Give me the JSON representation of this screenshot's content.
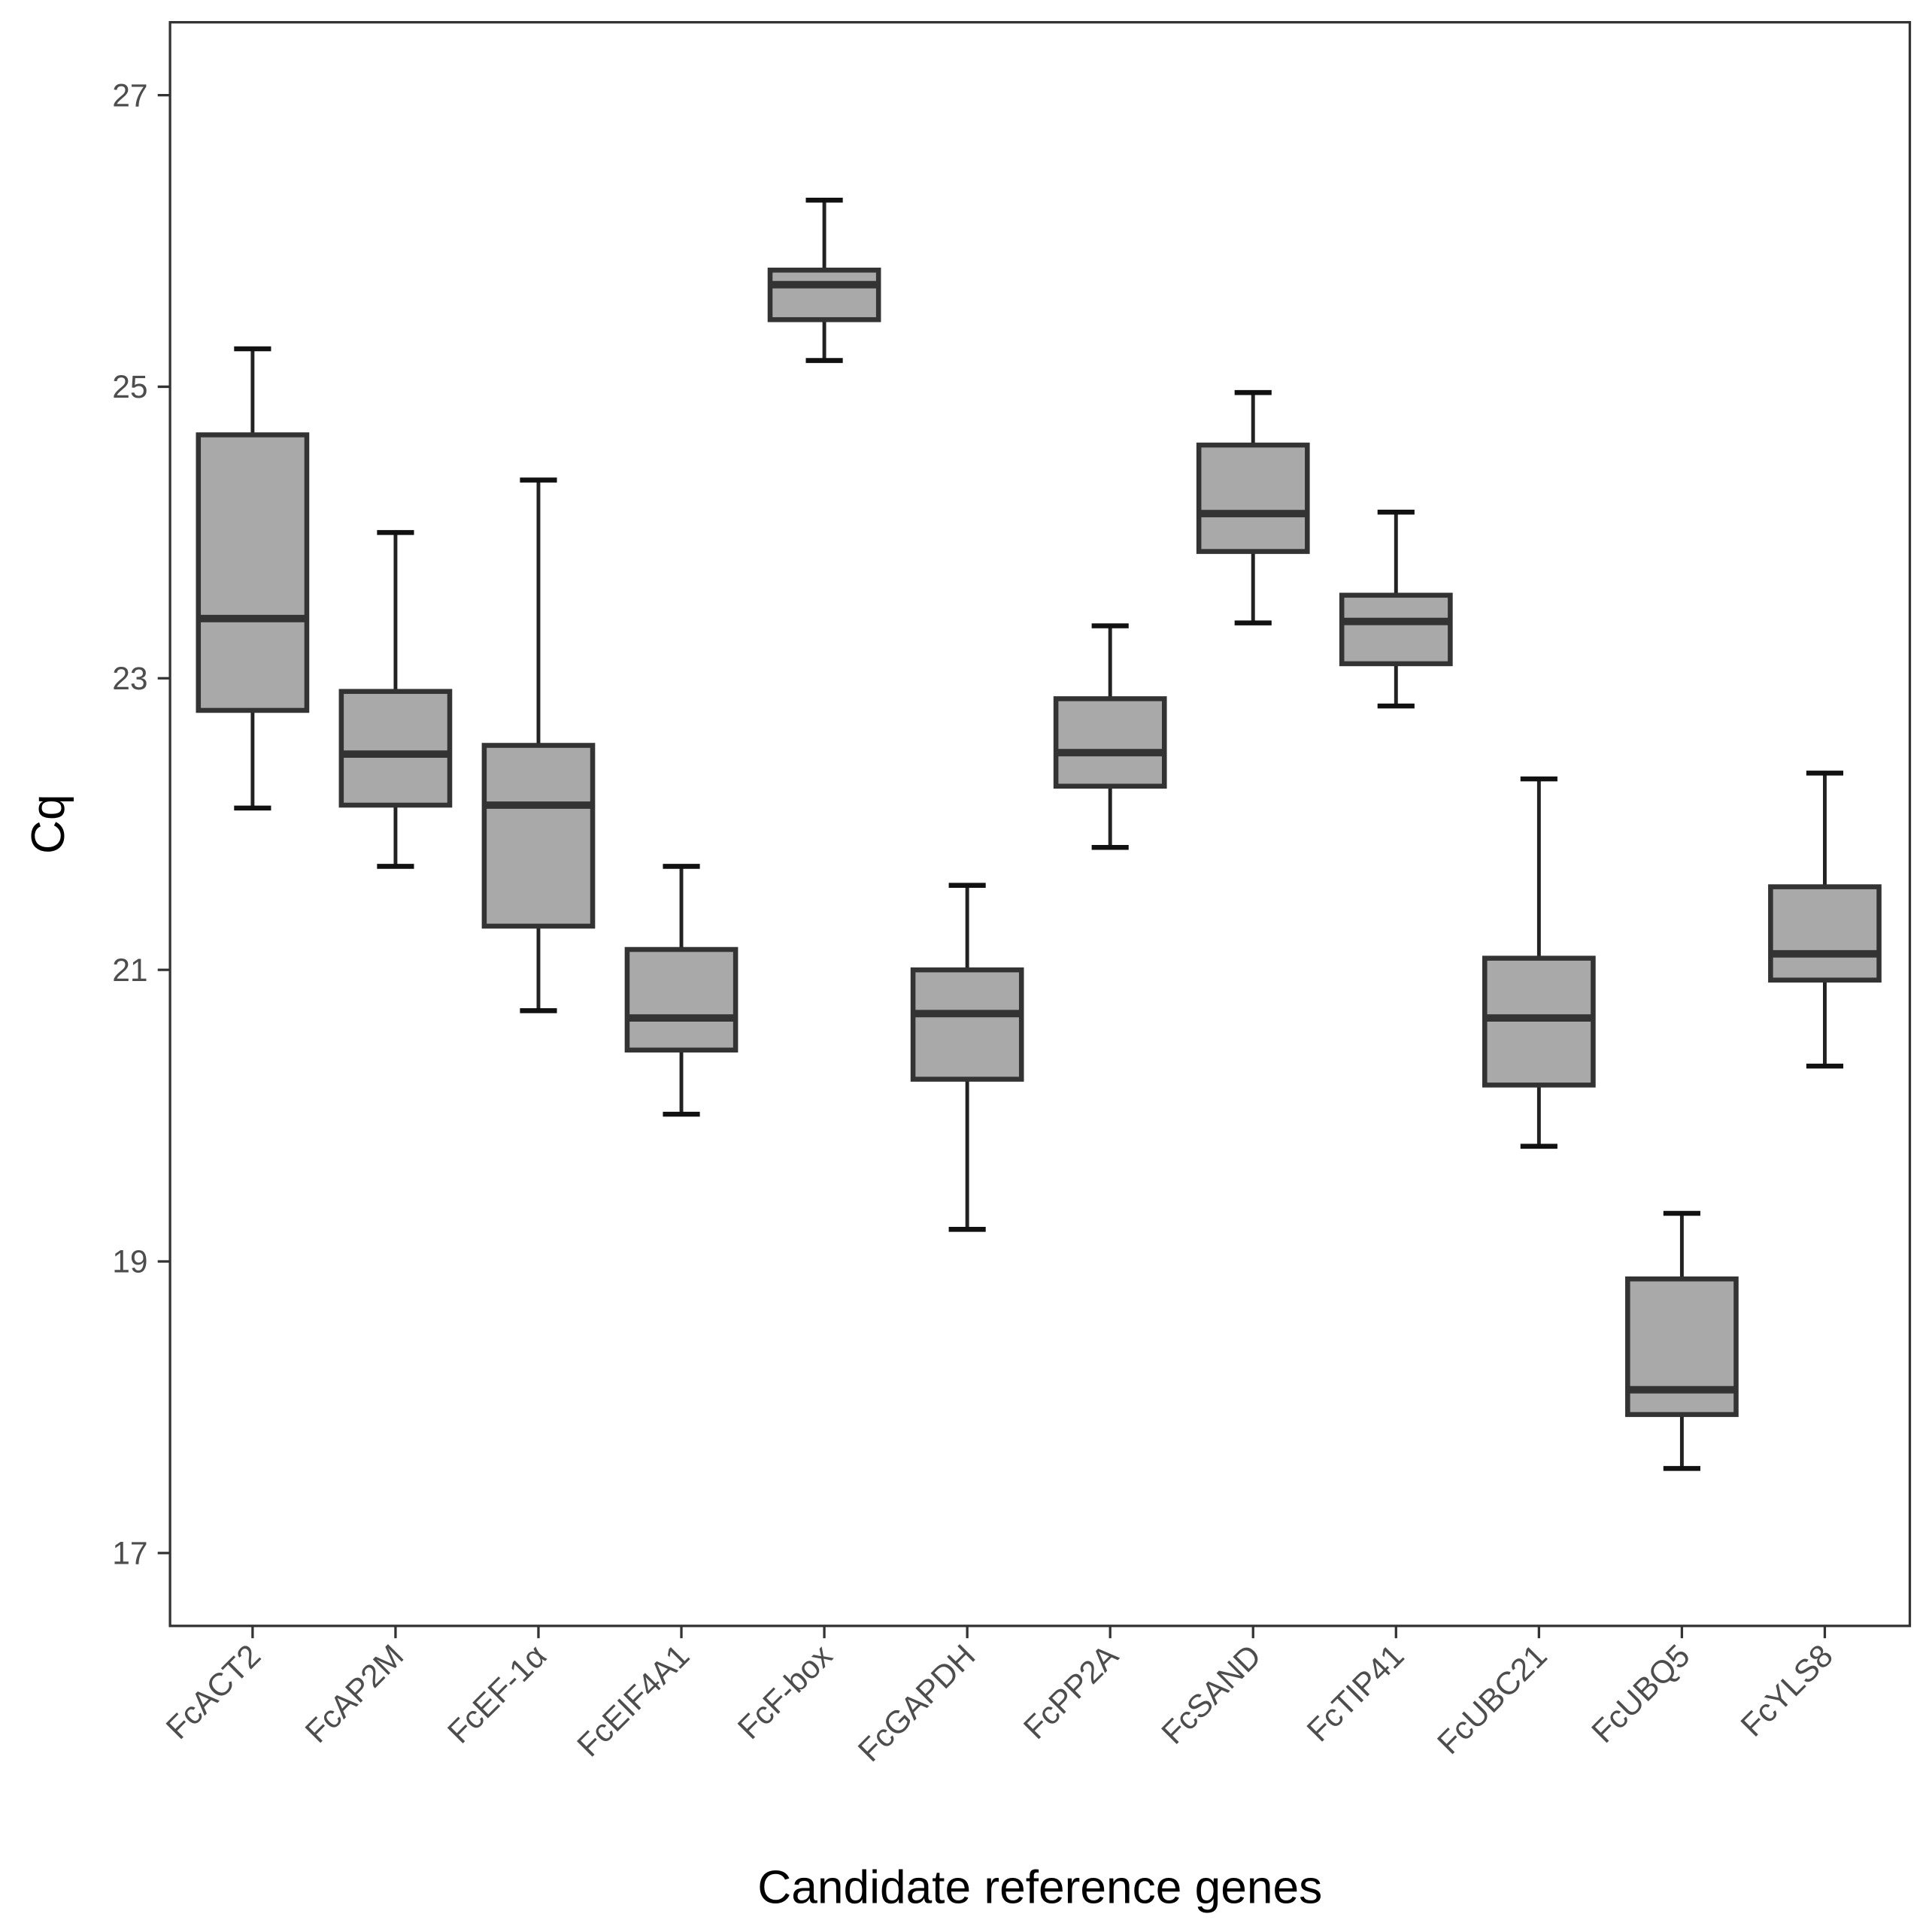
{
  "chart_data": {
    "type": "boxplot",
    "xlabel": "Candidate reference genes",
    "ylabel": "Cq",
    "ylim": [
      16.5,
      27.5
    ],
    "yticks": [
      17,
      19,
      21,
      23,
      25,
      27
    ],
    "grid": false,
    "legend": "none",
    "colors": {
      "box_fill": "#a9a9a9",
      "box_stroke": "#333333",
      "whisker": "#222222",
      "axis_text": "#4d4d4d"
    },
    "categories": [
      "FcACT2",
      "FcAP2M",
      "FcEF-1α",
      "FcEIF4A1",
      "FcF-box",
      "FcGAPDH",
      "FcPP2A",
      "FcSAND",
      "FcTIP41",
      "FcUBC21",
      "FcUBQ5",
      "FcYLS8"
    ],
    "boxes": [
      {
        "min": 22.11,
        "q1": 22.78,
        "median": 23.41,
        "q3": 24.67,
        "max": 25.26
      },
      {
        "min": 21.71,
        "q1": 22.13,
        "median": 22.48,
        "q3": 22.91,
        "max": 24.0
      },
      {
        "min": 20.72,
        "q1": 21.3,
        "median": 22.13,
        "q3": 22.54,
        "max": 24.36
      },
      {
        "min": 20.01,
        "q1": 20.45,
        "median": 20.67,
        "q3": 21.14,
        "max": 21.71
      },
      {
        "min": 25.18,
        "q1": 25.46,
        "median": 25.7,
        "q3": 25.8,
        "max": 26.28
      },
      {
        "min": 19.22,
        "q1": 20.25,
        "median": 20.7,
        "q3": 21.0,
        "max": 21.58
      },
      {
        "min": 21.84,
        "q1": 22.26,
        "median": 22.49,
        "q3": 22.86,
        "max": 23.36
      },
      {
        "min": 23.38,
        "q1": 23.87,
        "median": 24.13,
        "q3": 24.6,
        "max": 24.96
      },
      {
        "min": 22.81,
        "q1": 23.1,
        "median": 23.39,
        "q3": 23.57,
        "max": 24.14
      },
      {
        "min": 19.79,
        "q1": 20.21,
        "median": 20.67,
        "q3": 21.08,
        "max": 22.31
      },
      {
        "min": 17.58,
        "q1": 17.95,
        "median": 18.12,
        "q3": 18.88,
        "max": 19.33
      },
      {
        "min": 20.34,
        "q1": 20.93,
        "median": 21.11,
        "q3": 21.57,
        "max": 22.35
      }
    ]
  }
}
